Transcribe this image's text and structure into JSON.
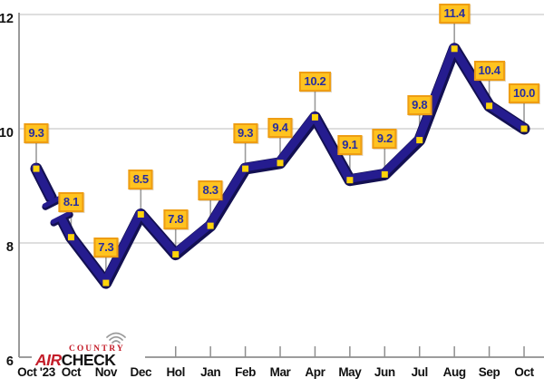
{
  "chart_data": {
    "type": "line",
    "title": "",
    "x_labels": [
      "Oct '23",
      "Oct",
      "Nov",
      "Dec",
      "Hol",
      "Jan",
      "Feb",
      "Mar",
      "Apr",
      "May",
      "Jun",
      "Jul",
      "Aug",
      "Sep",
      "Oct"
    ],
    "values": [
      9.3,
      8.1,
      7.3,
      8.5,
      7.8,
      8.3,
      9.3,
      9.4,
      10.2,
      9.1,
      9.2,
      9.8,
      11.4,
      10.4,
      10.0
    ],
    "value_labels": [
      "9.3",
      "8.1",
      "7.3",
      "8.5",
      "7.8",
      "8.3",
      "9.3",
      "9.4",
      "10.2",
      "9.1",
      "9.2",
      "9.8",
      "11.4",
      "10.4",
      "10.0"
    ],
    "y_ticks": [
      6,
      8,
      10,
      12
    ],
    "y_tick_labels": [
      "6",
      "8",
      "10",
      "12"
    ],
    "ylim": [
      6,
      12
    ],
    "grid": "horizontal",
    "legend": "none",
    "break_after_index": 0,
    "colors": {
      "line_dark": "#131052",
      "line_main": "#251c8f",
      "marker": "#ffd40a",
      "label_bg": "#ffc320",
      "label_border": "#ee9d13",
      "label_text": "#272e9f",
      "grid": "#d4d4d4",
      "axis": "#8f8f8f",
      "stem": "#9b9b9b",
      "tick_text": "#101010"
    }
  },
  "logo": {
    "country": "COUNTRY",
    "air": "AIR",
    "check": "CHECK",
    "red": "#c41e2a"
  }
}
